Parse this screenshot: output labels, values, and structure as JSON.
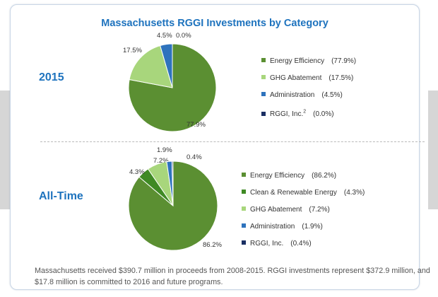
{
  "title": "Massachusetts RGGI Investments by Category",
  "footnote": "Massachusetts received $390.7 million in proceeds from 2008-2015. RGGI investments represent $372.9 million, and $17.8 million is committed to 2016 and future programs.",
  "chart_data": [
    {
      "type": "pie",
      "title": "2015",
      "series": [
        {
          "name": "Energy Efficiency",
          "value": 77.9,
          "value_label": "77.9%",
          "legend_pct": "(77.9%)",
          "color": "#5b8f32"
        },
        {
          "name": "GHG Abatement",
          "value": 17.5,
          "value_label": "17.5%",
          "legend_pct": "(17.5%)",
          "color": "#a8d67c"
        },
        {
          "name": "Administration",
          "value": 4.5,
          "value_label": "4.5%",
          "legend_pct": "(4.5%)",
          "color": "#2e73bd"
        },
        {
          "name": "RGGI, Inc.",
          "superscript": "2",
          "value": 0.0,
          "value_label": "0.0%",
          "legend_pct": "(0.0%)",
          "color": "#1a2f63"
        }
      ]
    },
    {
      "type": "pie",
      "title": "All-Time",
      "series": [
        {
          "name": "Energy Efficiency",
          "value": 86.2,
          "value_label": "86.2%",
          "legend_pct": "(86.2%)",
          "color": "#5b8f32"
        },
        {
          "name": "Clean & Renewable Energy",
          "value": 4.3,
          "value_label": "4.3%",
          "legend_pct": "(4.3%)",
          "color": "#3f8a24"
        },
        {
          "name": "GHG Abatement",
          "value": 7.2,
          "value_label": "7.2%",
          "legend_pct": "(7.2%)",
          "color": "#a8d67c"
        },
        {
          "name": "Administration",
          "value": 1.9,
          "value_label": "1.9%",
          "legend_pct": "(1.9%)",
          "color": "#2e73bd"
        },
        {
          "name": "RGGI, Inc.",
          "value": 0.4,
          "value_label": "0.4%",
          "legend_pct": "(0.4%)",
          "color": "#1a2f63"
        }
      ]
    }
  ]
}
